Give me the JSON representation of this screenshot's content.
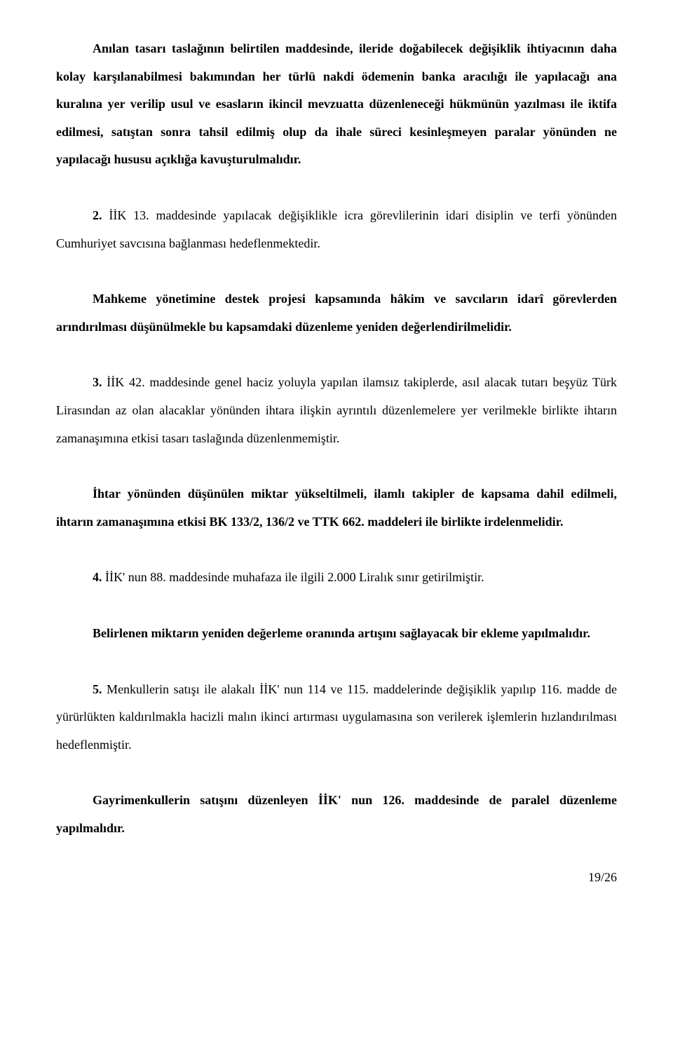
{
  "document": {
    "paragraphs": {
      "p1": {
        "text_bold": "Anılan tasarı taslağının belirtilen maddesinde, ileride doğabilecek değişiklik ihtiyacının daha kolay karşılanabilmesi bakımından her türlü nakdi ödemenin banka aracılığı ile yapılacağı ana kuralına yer verilip usul ve esasların ikincil mevzuatta düzenleneceği hükmünün yazılması ile iktifa edilmesi, satıştan sonra tahsil edilmiş olup da ihale süreci kesinleşmeyen paralar yönünden ne yapılacağı hususu açıklığa kavuşturulmalıdır."
      },
      "p2": {
        "label": "2.",
        "text": " İİK 13. maddesinde yapılacak değişiklikle icra görevlilerinin idari disiplin ve terfi yönünden Cumhuriyet savcısına bağlanması hedeflenmektedir."
      },
      "p3": {
        "text_bold": "Mahkeme yönetimine destek projesi kapsamında hâkim ve savcıların idarî görevlerden arındırılması düşünülmekle bu kapsamdaki düzenleme yeniden değerlendirilmelidir."
      },
      "p4": {
        "label": "3.",
        "text": " İİK 42. maddesinde genel haciz yoluyla yapılan ilamsız takiplerde, asıl alacak tutarı beşyüz Türk Lirasından az olan alacaklar yönünden ihtara ilişkin ayrıntılı düzenlemelere yer verilmekle birlikte ihtarın zamanaşımına etkisi tasarı taslağında düzenlenmemiştir."
      },
      "p5": {
        "text_bold": "İhtar yönünden düşünülen miktar yükseltilmeli, ilamlı takipler de kapsama dahil edilmeli, ihtarın zamanaşımına etkisi BK 133/2, 136/2 ve TTK 662. maddeleri ile birlikte irdelenmelidir."
      },
      "p6": {
        "label": "4.",
        "text": " İİK' nun 88. maddesinde muhafaza ile ilgili 2.000 Liralık sınır getirilmiştir."
      },
      "p7": {
        "text_bold_part1": "Belirlenen miktarın yeniden değerleme oranında artışını sağlayacak bir ekleme yapılmalıdır."
      },
      "p8": {
        "label": "5.",
        "text": " Menkullerin satışı ile alakalı İİK' nun 114 ve 115. maddelerinde değişiklik yapılıp 116. madde de yürürlükten kaldırılmakla hacizli malın ikinci artırması uygulamasına son verilerek işlemlerin hızlandırılması hedeflenmiştir."
      },
      "p9": {
        "text_bold": "Gayrimenkullerin satışını düzenleyen İİK' nun 126. maddesinde de paralel düzenleme yapılmalıdır."
      }
    },
    "page_number": "19/26"
  }
}
